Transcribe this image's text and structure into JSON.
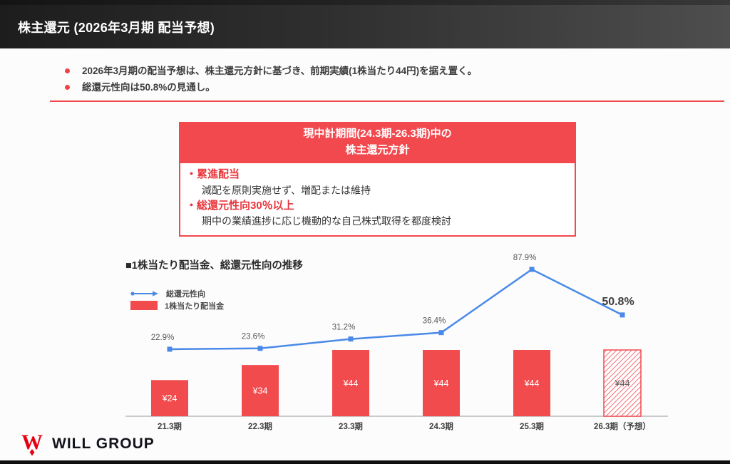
{
  "slide": {
    "title": "株主還元 (2026年3月期 配当予想)",
    "bullets": [
      "2026年3月期の配当予想は、株主還元方針に基づき、前期実績(1株当たり44円)を据え置く。",
      "総還元性向は50.8%の見通し。"
    ]
  },
  "policy_box": {
    "title_line1": "現中計期間(24.3期-26.3期)中の",
    "title_line2": "株主還元方針",
    "items": [
      {
        "heading": "・累進配当",
        "detail": "減配を原則実施せず、増配または維持"
      },
      {
        "heading": "・総還元性向30％以上",
        "detail": "期中の業績進捗に応じ機動的な自己株式取得を都度検討"
      }
    ]
  },
  "chart_data": {
    "type": "bar",
    "subtype": "combo-bar-line",
    "title": "■1株当たり配当金、総還元性向の推移",
    "categories": [
      "21.3期",
      "22.3期",
      "23.3期",
      "24.3期",
      "25.3期",
      "26.3期（予想）"
    ],
    "series": [
      {
        "name": "総還元性向",
        "type": "line",
        "unit": "%",
        "values": [
          22.9,
          23.6,
          31.2,
          36.4,
          87.9,
          50.8
        ],
        "labels": [
          "22.9%",
          "23.6%",
          "31.2%",
          "36.4%",
          "87.9%",
          "50.8%"
        ],
        "emphasized_label_index": 5,
        "color": "#4a89e8"
      },
      {
        "name": "1株当たり配当金",
        "type": "bar",
        "unit": "円",
        "values": [
          24,
          34,
          44,
          44,
          44,
          44
        ],
        "labels": [
          "¥24",
          "¥34",
          "¥44",
          "¥44",
          "¥44",
          "¥44"
        ],
        "forecast_index": 5,
        "color": "#f24b4e"
      }
    ],
    "legend_position": "top-left",
    "grid": false,
    "y_axis_visible": false,
    "xlabel": "",
    "ylabel": ""
  },
  "footer": {
    "logo_text": "WILL GROUP"
  },
  "colors": {
    "accent_red": "#f2494f",
    "bar_red": "#f24b4e",
    "heading_red": "#e8363c",
    "line_blue": "#4a89e8",
    "logo_red": "#e60012",
    "pct_label": "#595959",
    "axis_label": "#3f3f3f"
  }
}
